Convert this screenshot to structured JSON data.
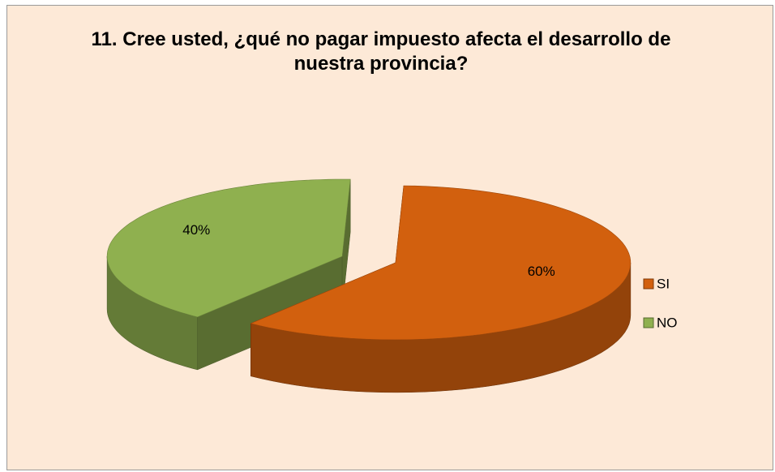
{
  "chart_data": {
    "type": "pie",
    "title": "11. Cree usted, ¿qué no pagar impuesto afecta el desarrollo de nuestra provincia?",
    "categories": [
      "SI",
      "NO"
    ],
    "values": [
      60,
      40
    ],
    "value_labels": [
      "60%",
      "40%"
    ],
    "colors": [
      "#d2600e",
      "#8fb04f"
    ],
    "legend": "right"
  }
}
